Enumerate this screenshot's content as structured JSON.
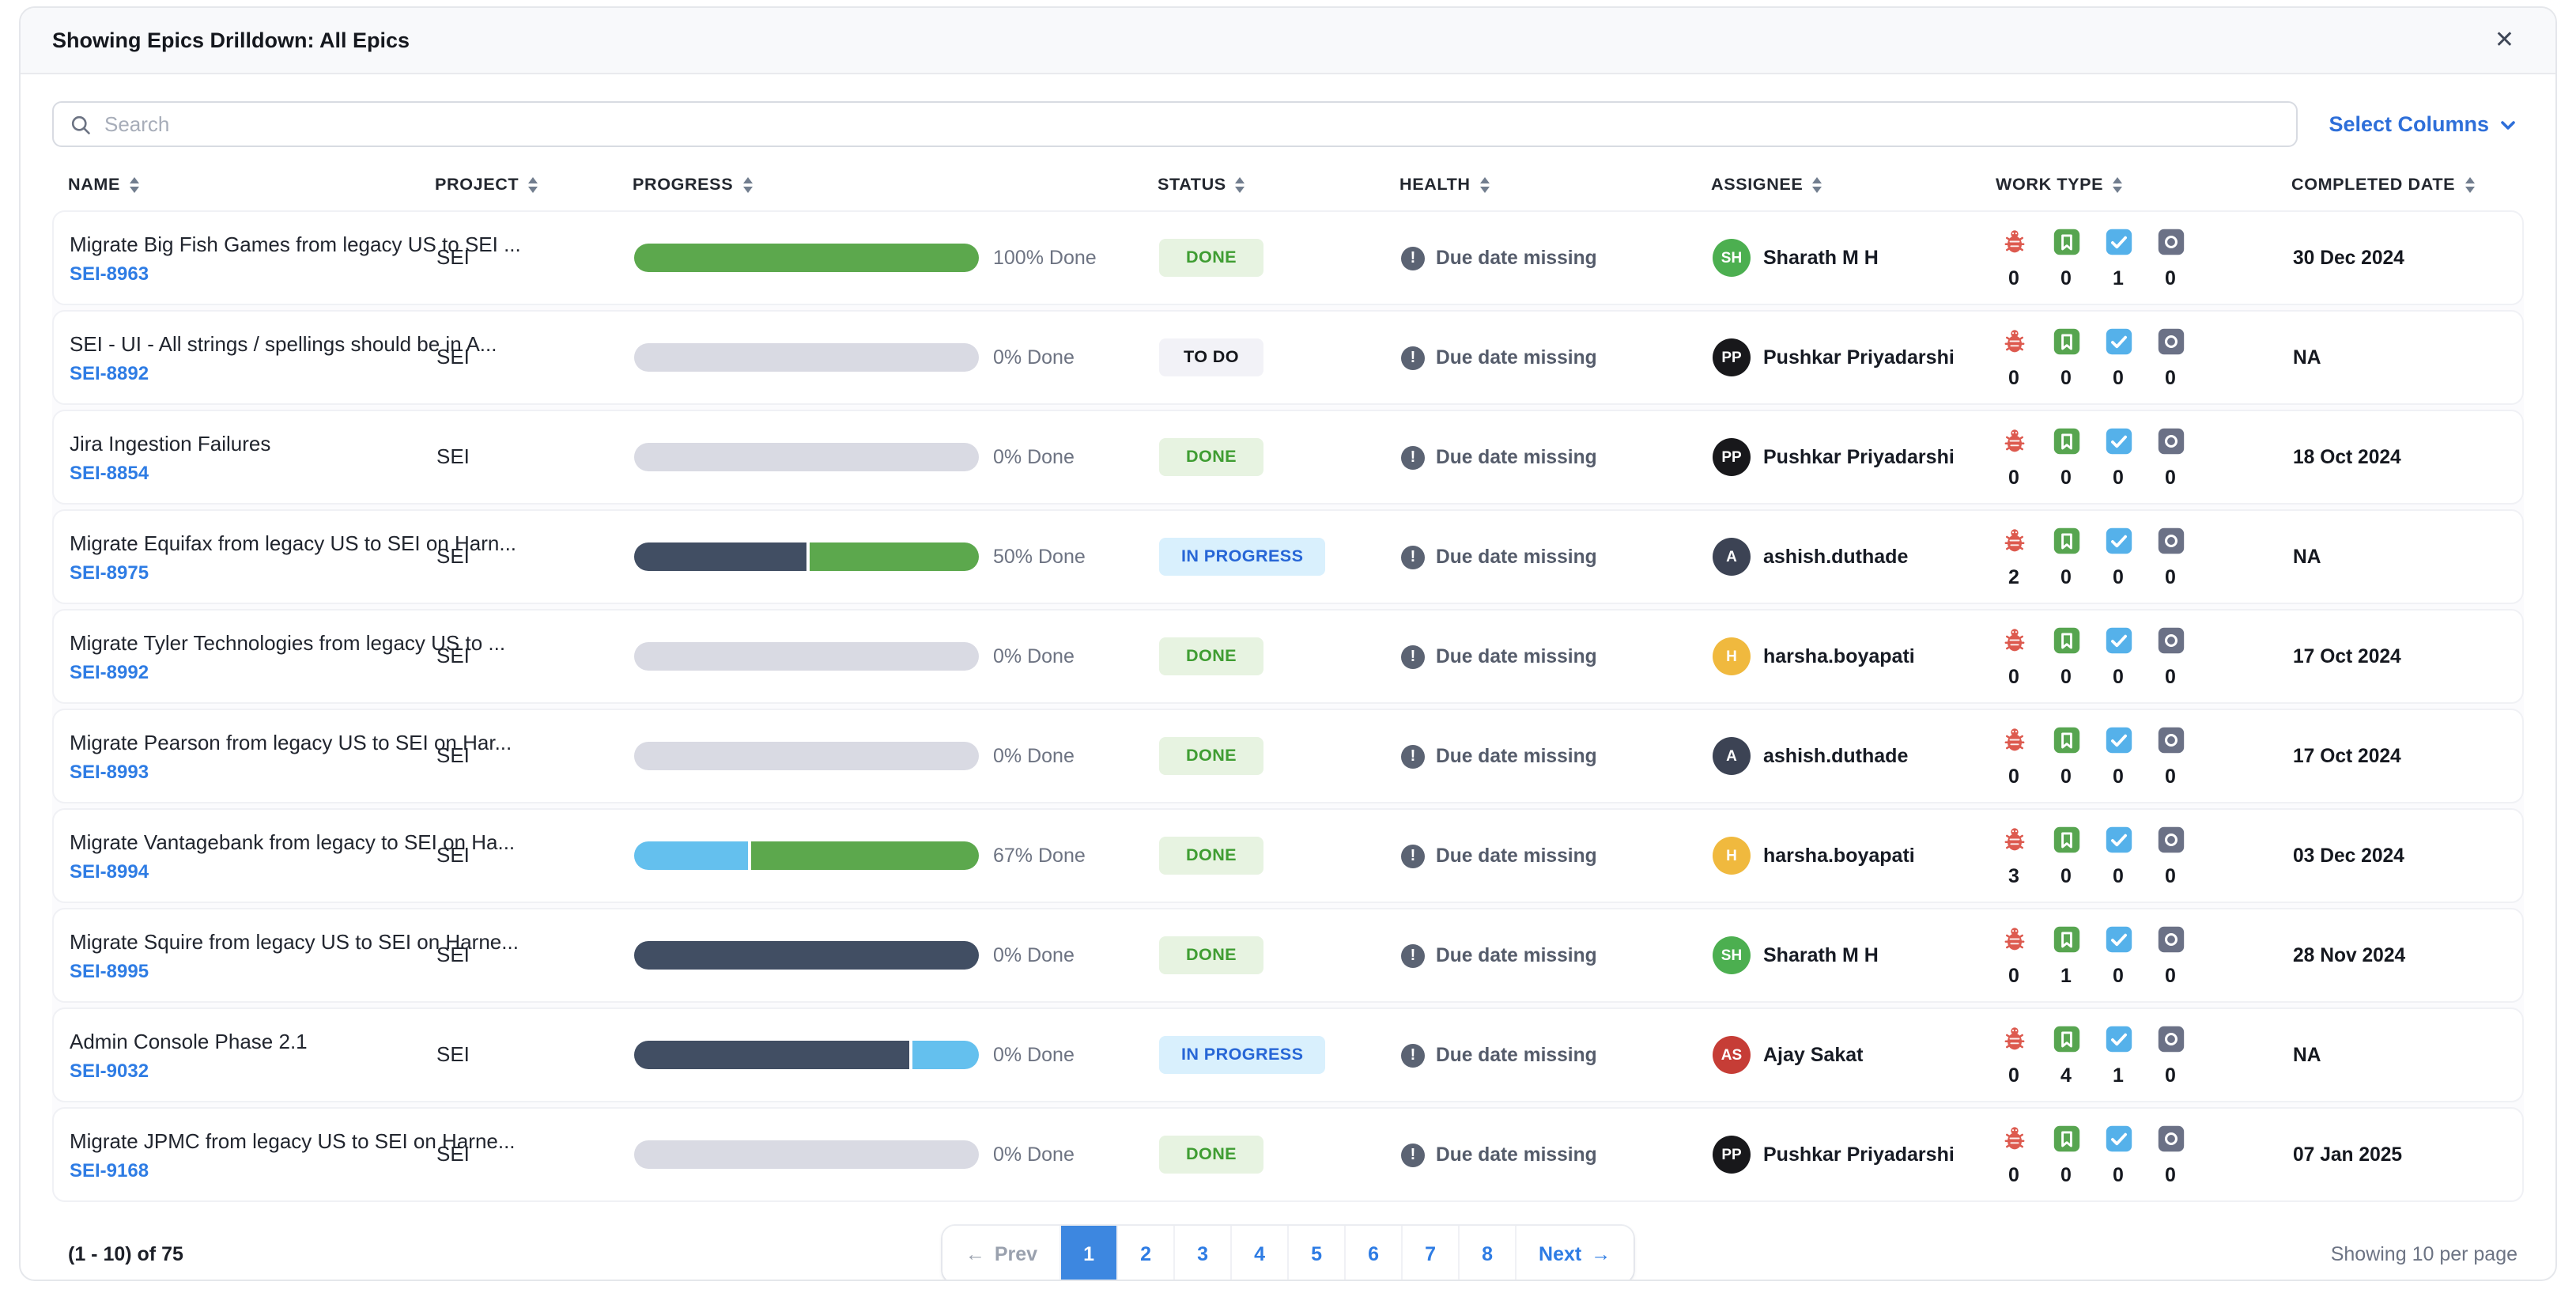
{
  "panel": {
    "title": "Showing Epics Drilldown: All Epics"
  },
  "icons": {
    "close": "✕",
    "search": "magnifier",
    "select_columns_chevron": "chevron-down",
    "prev_arrow": "←",
    "next_arrow": "→",
    "health": "exclamation-circle",
    "work_types": [
      "bug",
      "story",
      "task",
      "epic"
    ]
  },
  "toolbar": {
    "search_placeholder": "Search",
    "search_value": "",
    "select_columns_label": "Select Columns"
  },
  "columns": [
    "NAME",
    "PROJECT",
    "PROGRESS",
    "STATUS",
    "HEALTH",
    "ASSIGNEE",
    "WORK TYPE",
    "COMPLETED DATE"
  ],
  "colors": {
    "accent_blue": "#2e7ce4",
    "progress_green": "#5ca84d",
    "progress_navy": "#414e63",
    "progress_blue": "#64c0ee",
    "progress_gray": "#d9dae3",
    "done_bg": "#e7f3e1",
    "done_text": "#3f9d32",
    "todo_bg": "#f2f2f7",
    "todo_text": "#15171c",
    "inprogress_bg": "#d9f0fd",
    "inprogress_text": "#2766d6"
  },
  "rows": [
    {
      "name": "Migrate Big Fish Games from legacy US to SEI ...",
      "key": "SEI-8963",
      "project": "SEI",
      "progress": {
        "label": "100% Done",
        "segments": [
          {
            "c": "green",
            "w": 100
          }
        ]
      },
      "status": {
        "label": "DONE",
        "type": "done"
      },
      "health": "Due date missing",
      "assignee": {
        "initials": "SH",
        "name": "Sharath M H",
        "color": "#4caf50"
      },
      "work_counts": [
        0,
        0,
        1,
        0
      ],
      "completed": "30 Dec 2024"
    },
    {
      "name": "SEI - UI - All strings / spellings should be in A...",
      "key": "SEI-8892",
      "project": "SEI",
      "progress": {
        "label": "0% Done",
        "segments": [
          {
            "c": "gray",
            "w": 100
          }
        ]
      },
      "status": {
        "label": "TO DO",
        "type": "todo"
      },
      "health": "Due date missing",
      "assignee": {
        "initials": "PP",
        "name": "Pushkar Priyadarshi",
        "color": "#18181b"
      },
      "work_counts": [
        0,
        0,
        0,
        0
      ],
      "completed": "NA"
    },
    {
      "name": "Jira Ingestion Failures",
      "key": "SEI-8854",
      "project": "SEI",
      "progress": {
        "label": "0% Done",
        "segments": [
          {
            "c": "gray",
            "w": 100
          }
        ]
      },
      "status": {
        "label": "DONE",
        "type": "done"
      },
      "health": "Due date missing",
      "assignee": {
        "initials": "PP",
        "name": "Pushkar Priyadarshi",
        "color": "#18181b"
      },
      "work_counts": [
        0,
        0,
        0,
        0
      ],
      "completed": "18 Oct 2024"
    },
    {
      "name": "Migrate Equifax from legacy US to SEI on Harn...",
      "key": "SEI-8975",
      "project": "SEI",
      "progress": {
        "label": "50% Done",
        "segments": [
          {
            "c": "navy",
            "w": 50
          },
          {
            "c": "green",
            "w": 50
          }
        ]
      },
      "status": {
        "label": "IN PROGRESS",
        "type": "inprogress"
      },
      "health": "Due date missing",
      "assignee": {
        "initials": "A",
        "name": "ashish.duthade",
        "color": "#3c4354"
      },
      "work_counts": [
        2,
        0,
        0,
        0
      ],
      "completed": "NA"
    },
    {
      "name": "Migrate Tyler Technologies from legacy US to ...",
      "key": "SEI-8992",
      "project": "SEI",
      "progress": {
        "label": "0% Done",
        "segments": [
          {
            "c": "gray",
            "w": 100
          }
        ]
      },
      "status": {
        "label": "DONE",
        "type": "done"
      },
      "health": "Due date missing",
      "assignee": {
        "initials": "H",
        "name": "harsha.boyapati",
        "color": "#f0b93e"
      },
      "work_counts": [
        0,
        0,
        0,
        0
      ],
      "completed": "17 Oct 2024"
    },
    {
      "name": "Migrate Pearson from legacy US to SEI on Har...",
      "key": "SEI-8993",
      "project": "SEI",
      "progress": {
        "label": "0% Done",
        "segments": [
          {
            "c": "gray",
            "w": 100
          }
        ]
      },
      "status": {
        "label": "DONE",
        "type": "done"
      },
      "health": "Due date missing",
      "assignee": {
        "initials": "A",
        "name": "ashish.duthade",
        "color": "#3c4354"
      },
      "work_counts": [
        0,
        0,
        0,
        0
      ],
      "completed": "17 Oct 2024"
    },
    {
      "name": "Migrate Vantagebank from legacy to SEI on Ha...",
      "key": "SEI-8994",
      "project": "SEI",
      "progress": {
        "label": "67% Done",
        "segments": [
          {
            "c": "blue",
            "w": 33
          },
          {
            "c": "green",
            "w": 67
          }
        ]
      },
      "status": {
        "label": "DONE",
        "type": "done"
      },
      "health": "Due date missing",
      "assignee": {
        "initials": "H",
        "name": "harsha.boyapati",
        "color": "#f0b93e"
      },
      "work_counts": [
        3,
        0,
        0,
        0
      ],
      "completed": "03 Dec 2024"
    },
    {
      "name": "Migrate Squire from legacy US to SEI on Harne...",
      "key": "SEI-8995",
      "project": "SEI",
      "progress": {
        "label": "0% Done",
        "segments": [
          {
            "c": "navy",
            "w": 100
          }
        ]
      },
      "status": {
        "label": "DONE",
        "type": "done"
      },
      "health": "Due date missing",
      "assignee": {
        "initials": "SH",
        "name": "Sharath M H",
        "color": "#4caf50"
      },
      "work_counts": [
        0,
        1,
        0,
        0
      ],
      "completed": "28 Nov 2024"
    },
    {
      "name": "Admin Console Phase 2.1",
      "key": "SEI-9032",
      "project": "SEI",
      "progress": {
        "label": "0% Done",
        "segments": [
          {
            "c": "navy",
            "w": 80
          },
          {
            "c": "blue",
            "w": 20
          }
        ]
      },
      "status": {
        "label": "IN PROGRESS",
        "type": "inprogress"
      },
      "health": "Due date missing",
      "assignee": {
        "initials": "AS",
        "name": "Ajay Sakat",
        "color": "#c63d36"
      },
      "work_counts": [
        0,
        4,
        1,
        0
      ],
      "completed": "NA"
    },
    {
      "name": "Migrate JPMC from legacy US to SEI on Harne...",
      "key": "SEI-9168",
      "project": "SEI",
      "progress": {
        "label": "0% Done",
        "segments": [
          {
            "c": "gray",
            "w": 100
          }
        ]
      },
      "status": {
        "label": "DONE",
        "type": "done"
      },
      "health": "Due date missing",
      "assignee": {
        "initials": "PP",
        "name": "Pushkar Priyadarshi",
        "color": "#18181b"
      },
      "work_counts": [
        0,
        0,
        0,
        0
      ],
      "completed": "07 Jan 2025"
    }
  ],
  "footer": {
    "range": "(1 - 10) of 75",
    "prev_label": "Prev",
    "next_label": "Next",
    "pages": [
      "1",
      "2",
      "3",
      "4",
      "5",
      "6",
      "7",
      "8"
    ],
    "active_page": "1",
    "per_page": "Showing 10 per page"
  }
}
